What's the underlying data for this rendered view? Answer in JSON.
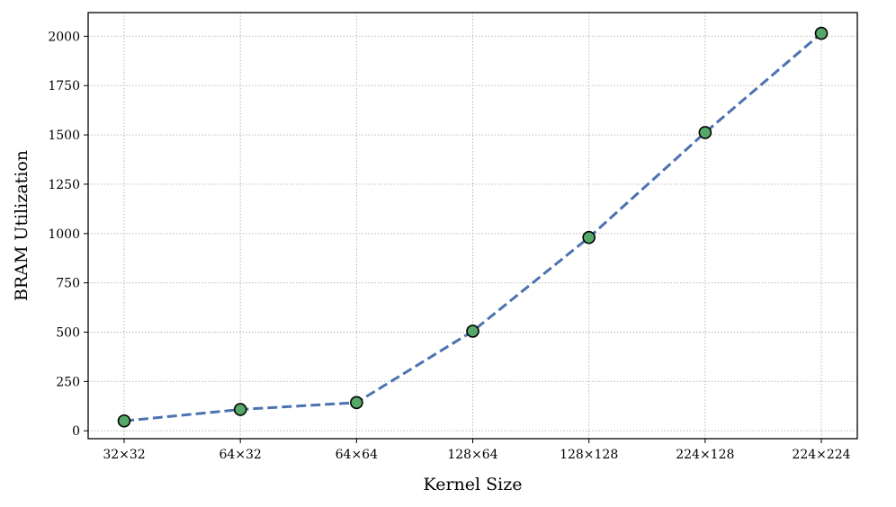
{
  "chart_data": {
    "type": "line",
    "title": "",
    "xlabel": "Kernel Size",
    "ylabel": "BRAM Utilization",
    "categories": [
      "32×32",
      "64×32",
      "64×64",
      "128×64",
      "128×128",
      "224×128",
      "224×224"
    ],
    "series": [
      {
        "values": [
          50,
          108,
          143,
          505,
          980,
          1512,
          2015
        ]
      }
    ],
    "ylim": [
      -40,
      2120
    ],
    "yticks": [
      0,
      250,
      500,
      750,
      1000,
      1250,
      1500,
      1750,
      2000
    ],
    "grid": true,
    "line_style": "dashed",
    "colors": {
      "line": "#4c72b0",
      "marker_fill": "#55a868",
      "marker_edge": "#000000",
      "grid": "#b0b0b0"
    }
  }
}
